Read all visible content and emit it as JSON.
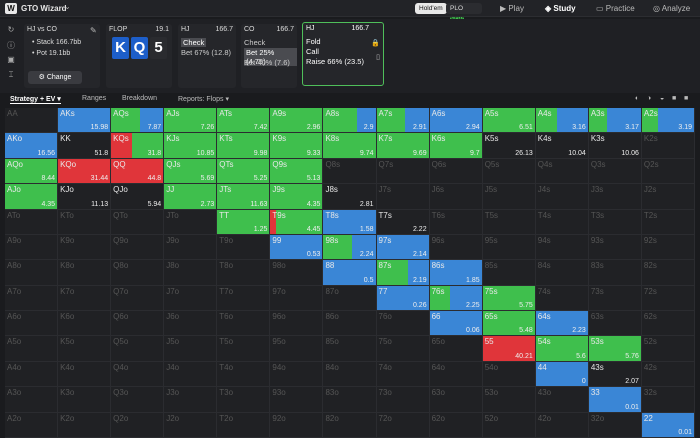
{
  "app": {
    "name": "GTO Wizard",
    "logo_letter": "W"
  },
  "topbar": {
    "game_pills": [
      "Hold'em",
      "PLO",
      "NEW"
    ],
    "nav": [
      "Play",
      "Study",
      "Practice",
      "Analyze"
    ],
    "active_nav": "Study"
  },
  "spot": {
    "title": "HJ vs CO",
    "stack": "Stack 166.7bb",
    "pot": "Pot 19.1bb",
    "change": "Change",
    "flop_label": "FLOP",
    "flop_pot": "19.1",
    "cards": [
      "K",
      "Q",
      "5"
    ],
    "actions": [
      {
        "pos": "HJ",
        "stack": "166.7",
        "lines": [
          "Check",
          "Bet 67% (12.8)"
        ],
        "selected": 0
      },
      {
        "pos": "CO",
        "stack": "166.7",
        "lines": [
          "Check",
          "Bet 25% (4.75)",
          "Bet 40% (7.6)"
        ],
        "selected": 1
      },
      {
        "pos": "HJ",
        "stack": "166.7",
        "lines": [
          "Fold",
          "Call",
          "Raise 66% (23.5)"
        ],
        "selected": -1
      }
    ]
  },
  "tabs": [
    "Strategy + EV",
    "Ranges",
    "Breakdown",
    "Reports: Flops"
  ],
  "colors": {
    "raise": "#e0353a",
    "call": "#3fbf4d",
    "fold": "#3a86d6",
    "bg": "#202124"
  },
  "hands": [
    [
      "AA",
      "AKs",
      "AQs",
      "AJs",
      "ATs",
      "A9s",
      "A8s",
      "A7s",
      "A6s",
      "A5s",
      "A4s",
      "A3s",
      "A2s"
    ],
    [
      "AKo",
      "KK",
      "KQs",
      "KJs",
      "KTs",
      "K9s",
      "K8s",
      "K7s",
      "K6s",
      "K5s",
      "K4s",
      "K3s",
      "K2s"
    ],
    [
      "AQo",
      "KQo",
      "QQ",
      "QJs",
      "QTs",
      "Q9s",
      "Q8s",
      "Q7s",
      "Q6s",
      "Q5s",
      "Q4s",
      "Q3s",
      "Q2s"
    ],
    [
      "AJo",
      "KJo",
      "QJo",
      "JJ",
      "JTs",
      "J9s",
      "J8s",
      "J7s",
      "J6s",
      "J5s",
      "J4s",
      "J3s",
      "J2s"
    ],
    [
      "ATo",
      "KTo",
      "QTo",
      "JTo",
      "TT",
      "T9s",
      "T8s",
      "T7s",
      "T6s",
      "T5s",
      "T4s",
      "T3s",
      "T2s"
    ],
    [
      "A9o",
      "K9o",
      "Q9o",
      "J9o",
      "T9o",
      "99",
      "98s",
      "97s",
      "96s",
      "95s",
      "94s",
      "93s",
      "92s"
    ],
    [
      "A8o",
      "K8o",
      "Q8o",
      "J8o",
      "T8o",
      "98o",
      "88",
      "87s",
      "86s",
      "85s",
      "84s",
      "83s",
      "82s"
    ],
    [
      "A7o",
      "K7o",
      "Q7o",
      "J7o",
      "T7o",
      "97o",
      "87o",
      "77",
      "76s",
      "75s",
      "74s",
      "73s",
      "72s"
    ],
    [
      "A6o",
      "K6o",
      "Q6o",
      "J6o",
      "T6o",
      "96o",
      "86o",
      "76o",
      "66",
      "65s",
      "64s",
      "63s",
      "62s"
    ],
    [
      "A5o",
      "K5o",
      "Q5o",
      "J5o",
      "T5o",
      "95o",
      "85o",
      "75o",
      "65o",
      "55",
      "54s",
      "53s",
      "52s"
    ],
    [
      "A4o",
      "K4o",
      "Q4o",
      "J4o",
      "T4o",
      "94o",
      "84o",
      "74o",
      "64o",
      "54o",
      "44",
      "43s",
      "42s"
    ],
    [
      "A3o",
      "K3o",
      "Q3o",
      "J3o",
      "T3o",
      "93o",
      "83o",
      "73o",
      "63o",
      "53o",
      "43o",
      "33",
      "32s"
    ],
    [
      "A2o",
      "K2o",
      "Q2o",
      "J2o",
      "T2o",
      "92o",
      "82o",
      "72o",
      "62o",
      "52o",
      "42o",
      "32o",
      "22"
    ]
  ],
  "cells": {
    "AKs": {
      "mix": [
        0,
        0,
        100
      ],
      "ev": "15.98"
    },
    "AQs": {
      "mix": [
        0,
        55,
        45
      ],
      "ev": "7.87"
    },
    "AJs": {
      "mix": [
        0,
        100,
        0
      ],
      "ev": "7.26"
    },
    "ATs": {
      "mix": [
        0,
        100,
        0
      ],
      "ev": "7.42"
    },
    "A9s": {
      "mix": [
        0,
        100,
        0
      ],
      "ev": "2.96"
    },
    "A8s": {
      "mix": [
        0,
        65,
        35
      ],
      "ev": "2.9"
    },
    "A7s": {
      "mix": [
        0,
        55,
        45
      ],
      "ev": "2.91"
    },
    "A6s": {
      "mix": [
        0,
        0,
        100
      ],
      "ev": "2.94"
    },
    "A5s": {
      "mix": [
        0,
        100,
        0
      ],
      "ev": "6.51"
    },
    "A4s": {
      "mix": [
        0,
        40,
        60
      ],
      "ev": "3.16"
    },
    "A3s": {
      "mix": [
        0,
        35,
        65
      ],
      "ev": "3.17"
    },
    "A2s": {
      "mix": [
        0,
        30,
        70
      ],
      "ev": "3.19"
    },
    "AKo": {
      "mix": [
        0,
        0,
        100
      ],
      "ev": "16.56"
    },
    "KK": {
      "mix": [
        0,
        0,
        0
      ],
      "ev": "51.8"
    },
    "KQs": {
      "mix": [
        40,
        60,
        0
      ],
      "ev": "31.8"
    },
    "KJs": {
      "mix": [
        0,
        100,
        0
      ],
      "ev": "10.85"
    },
    "KTs": {
      "mix": [
        0,
        100,
        0
      ],
      "ev": "9.98"
    },
    "K9s": {
      "mix": [
        0,
        100,
        0
      ],
      "ev": "9.33"
    },
    "K8s": {
      "mix": [
        0,
        100,
        0
      ],
      "ev": "9.74"
    },
    "K7s": {
      "mix": [
        0,
        100,
        0
      ],
      "ev": "9.69"
    },
    "K6s": {
      "mix": [
        0,
        100,
        0
      ],
      "ev": "9.7"
    },
    "K5s": {
      "mix": [
        0,
        0,
        0
      ],
      "ev": "26.13"
    },
    "K4s": {
      "mix": [
        0,
        0,
        0
      ],
      "ev": "10.04"
    },
    "K3s": {
      "mix": [
        0,
        0,
        0
      ],
      "ev": "10.06"
    },
    "AQo": {
      "mix": [
        0,
        100,
        0
      ],
      "ev": "8.44"
    },
    "KQo": {
      "mix": [
        100,
        0,
        0
      ],
      "ev": "31.44"
    },
    "QQ": {
      "mix": [
        100,
        0,
        0
      ],
      "ev": "44.8"
    },
    "QJs": {
      "mix": [
        0,
        100,
        0
      ],
      "ev": "5.69"
    },
    "QTs": {
      "mix": [
        0,
        100,
        0
      ],
      "ev": "5.25"
    },
    "Q9s": {
      "mix": [
        0,
        100,
        0
      ],
      "ev": "5.13"
    },
    "AJo": {
      "mix": [
        0,
        100,
        0
      ],
      "ev": "4.35"
    },
    "KJo": {
      "mix": [
        0,
        0,
        0
      ],
      "ev": "11.13"
    },
    "QJo": {
      "mix": [
        0,
        0,
        0
      ],
      "ev": "5.94"
    },
    "JJ": {
      "mix": [
        0,
        100,
        0
      ],
      "ev": "2.73"
    },
    "JTs": {
      "mix": [
        0,
        100,
        0
      ],
      "ev": "11.63"
    },
    "J9s": {
      "mix": [
        0,
        100,
        0
      ],
      "ev": "4.35"
    },
    "J8s": {
      "mix": [
        0,
        0,
        0
      ],
      "ev": "2.81"
    },
    "TT": {
      "mix": [
        0,
        100,
        0
      ],
      "ev": "1.25"
    },
    "T9s": {
      "mix": [
        10,
        90,
        0
      ],
      "ev": "4.45"
    },
    "T8s": {
      "mix": [
        0,
        0,
        100
      ],
      "ev": "1.58"
    },
    "T7s": {
      "mix": [
        0,
        0,
        0
      ],
      "ev": "2.22"
    },
    "99": {
      "mix": [
        0,
        0,
        100
      ],
      "ev": "0.53"
    },
    "98s": {
      "mix": [
        0,
        55,
        45
      ],
      "ev": "2.24"
    },
    "97s": {
      "mix": [
        0,
        0,
        100
      ],
      "ev": "2.14"
    },
    "88": {
      "mix": [
        0,
        0,
        100
      ],
      "ev": "0.5"
    },
    "87s": {
      "mix": [
        0,
        60,
        40
      ],
      "ev": "2.19"
    },
    "86s": {
      "mix": [
        0,
        0,
        100
      ],
      "ev": "1.85"
    },
    "77": {
      "mix": [
        0,
        0,
        100
      ],
      "ev": "0.26"
    },
    "76s": {
      "mix": [
        0,
        40,
        60
      ],
      "ev": "2.25"
    },
    "75s": {
      "mix": [
        0,
        100,
        0
      ],
      "ev": "5.75"
    },
    "66": {
      "mix": [
        0,
        0,
        100
      ],
      "ev": "0.06"
    },
    "65s": {
      "mix": [
        0,
        100,
        0
      ],
      "ev": "5.48"
    },
    "64s": {
      "mix": [
        0,
        0,
        100
      ],
      "ev": "2.23"
    },
    "55": {
      "mix": [
        100,
        0,
        0
      ],
      "ev": "40.21"
    },
    "54s": {
      "mix": [
        0,
        100,
        0
      ],
      "ev": "5.6"
    },
    "53s": {
      "mix": [
        0,
        100,
        0
      ],
      "ev": "5.76"
    },
    "44": {
      "mix": [
        0,
        0,
        100
      ],
      "ev": "0"
    },
    "43s": {
      "mix": [
        0,
        0,
        0
      ],
      "ev": "2.07"
    },
    "33": {
      "mix": [
        0,
        0,
        100
      ],
      "ev": "0.01"
    },
    "22": {
      "mix": [
        0,
        0,
        100
      ],
      "ev": "0.01"
    }
  }
}
